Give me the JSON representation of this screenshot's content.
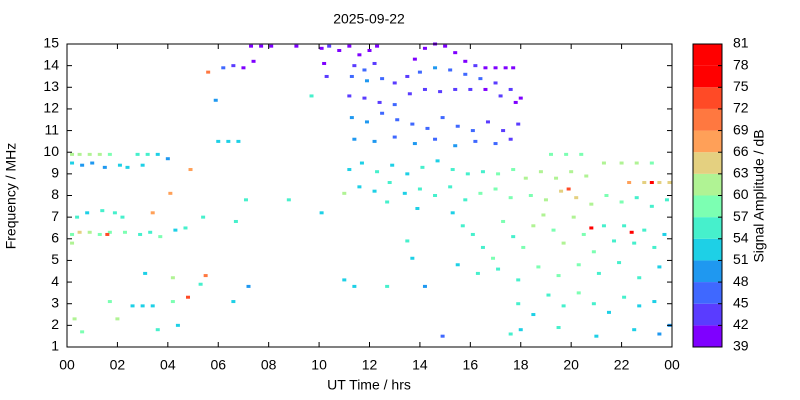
{
  "chart_data": {
    "type": "scatter",
    "title": "2025-09-22",
    "x_label": "UT Time / hrs",
    "y_label": "Frequency / MHz",
    "colorbar_label": "Signal Amplitude / dB",
    "xlim": [
      0,
      24
    ],
    "xticks": [
      {
        "value": 0,
        "label": "00"
      },
      {
        "value": 2,
        "label": "02"
      },
      {
        "value": 4,
        "label": "04"
      },
      {
        "value": 6,
        "label": "06"
      },
      {
        "value": 8,
        "label": "08"
      },
      10,
      12,
      14,
      16,
      18,
      20,
      22,
      {
        "value": 24,
        "label": "00"
      }
    ],
    "ylim": [
      1,
      15
    ],
    "yticks": [
      1,
      2,
      3,
      4,
      5,
      6,
      7,
      8,
      9,
      10,
      11,
      12,
      13,
      14,
      15
    ],
    "clim": [
      39,
      81
    ],
    "cticks": [
      39,
      42,
      45,
      48,
      51,
      54,
      57,
      60,
      63,
      66,
      69,
      72,
      75,
      78,
      81
    ],
    "colors": [
      "#7f00ff",
      "#5a3cff",
      "#3f68ff",
      "#1f98f0",
      "#1ed0e6",
      "#46f0cc",
      "#7cffb2",
      "#b0f394",
      "#e4d080",
      "#ffa058",
      "#ff7840",
      "#ff4a26",
      "#ff0000",
      "#ff0000"
    ],
    "points": [
      [
        0.2,
        9.9,
        60
      ],
      [
        0.5,
        9.9,
        62
      ],
      [
        0.9,
        9.9,
        61
      ],
      [
        1.3,
        9.9,
        60
      ],
      [
        1.7,
        9.9,
        58
      ],
      [
        0.2,
        9.5,
        52
      ],
      [
        0.6,
        9.4,
        50
      ],
      [
        1.0,
        9.5,
        48
      ],
      [
        1.5,
        9.3,
        49
      ],
      [
        2.1,
        9.4,
        51
      ],
      [
        2.8,
        9.9,
        55
      ],
      [
        3.2,
        9.9,
        54
      ],
      [
        3.6,
        9.9,
        52
      ],
      [
        4.0,
        9.7,
        50
      ],
      [
        2.4,
        9.3,
        52
      ],
      [
        3.0,
        9.4,
        53
      ],
      [
        0.4,
        7.0,
        55
      ],
      [
        0.8,
        7.2,
        53
      ],
      [
        1.4,
        7.3,
        54
      ],
      [
        1.9,
        7.2,
        55
      ],
      [
        2.2,
        7.0,
        54
      ],
      [
        3.4,
        7.2,
        66
      ],
      [
        0.2,
        6.2,
        58
      ],
      [
        0.5,
        6.3,
        63
      ],
      [
        0.9,
        6.3,
        60
      ],
      [
        1.3,
        6.2,
        59
      ],
      [
        1.7,
        6.3,
        58
      ],
      [
        2.3,
        6.3,
        57
      ],
      [
        2.9,
        6.2,
        55
      ],
      [
        3.3,
        6.3,
        56
      ],
      [
        3.7,
        6.1,
        57
      ],
      [
        4.3,
        6.4,
        52
      ],
      [
        4.7,
        6.5,
        54
      ],
      [
        0.2,
        5.8,
        60
      ],
      [
        1.6,
        6.2,
        72
      ],
      [
        4.1,
        8.1,
        68
      ],
      [
        4.9,
        9.2,
        66
      ],
      [
        5.5,
        4.3,
        69
      ],
      [
        4.8,
        3.3,
        72
      ],
      [
        0.3,
        2.3,
        60
      ],
      [
        0.6,
        1.7,
        58
      ],
      [
        1.7,
        3.1,
        57
      ],
      [
        2.0,
        2.3,
        60
      ],
      [
        2.6,
        2.9,
        52
      ],
      [
        3.0,
        2.9,
        53
      ],
      [
        3.4,
        2.9,
        51
      ],
      [
        3.6,
        1.8,
        55
      ],
      [
        4.2,
        3.1,
        58
      ],
      [
        4.4,
        2.0,
        52
      ],
      [
        3.1,
        4.4,
        52
      ],
      [
        4.2,
        4.2,
        60
      ],
      [
        5.3,
        3.9,
        55
      ],
      [
        6.6,
        3.1,
        53
      ],
      [
        7.2,
        3.8,
        50
      ],
      [
        5.4,
        7.0,
        56
      ],
      [
        6.7,
        6.8,
        55
      ],
      [
        7.1,
        7.8,
        56
      ],
      [
        8.8,
        7.8,
        55
      ],
      [
        10.1,
        7.2,
        51
      ],
      [
        11.0,
        4.1,
        52
      ],
      [
        11.4,
        3.8,
        53
      ],
      [
        12.7,
        3.8,
        55
      ],
      [
        5.6,
        13.7,
        69
      ],
      [
        6.2,
        13.9,
        45
      ],
      [
        6.6,
        14.0,
        42
      ],
      [
        7.0,
        13.9,
        40
      ],
      [
        7.4,
        14.2,
        41
      ],
      [
        7.3,
        14.9,
        40
      ],
      [
        7.7,
        14.9,
        41
      ],
      [
        8.1,
        14.9,
        40
      ],
      [
        5.9,
        12.4,
        50
      ],
      [
        6.0,
        10.5,
        52
      ],
      [
        6.4,
        10.5,
        53
      ],
      [
        6.8,
        10.5,
        51
      ],
      [
        9.1,
        14.9,
        41
      ],
      [
        9.7,
        12.6,
        56
      ],
      [
        10.1,
        14.8,
        41
      ],
      [
        10.4,
        14.9,
        42
      ],
      [
        10.8,
        14.7,
        40
      ],
      [
        10.3,
        13.5,
        44
      ],
      [
        10.2,
        14.1,
        40
      ],
      [
        11.2,
        14.9,
        40
      ],
      [
        11.6,
        14.5,
        41
      ],
      [
        12.0,
        14.7,
        40
      ],
      [
        12.3,
        14.9,
        41
      ],
      [
        11.4,
        14.0,
        43
      ],
      [
        11.8,
        13.8,
        45
      ],
      [
        12.2,
        14.1,
        44
      ],
      [
        11.3,
        13.5,
        46
      ],
      [
        11.9,
        13.3,
        48
      ],
      [
        12.5,
        13.4,
        45
      ],
      [
        13.0,
        13.2,
        44
      ],
      [
        13.5,
        13.5,
        43
      ],
      [
        13.8,
        14.3,
        41
      ],
      [
        14.2,
        14.8,
        40
      ],
      [
        14.6,
        15.0,
        40
      ],
      [
        15.0,
        14.9,
        41
      ],
      [
        15.4,
        14.6,
        40
      ],
      [
        15.8,
        14.2,
        41
      ],
      [
        16.2,
        14.0,
        42
      ],
      [
        16.6,
        13.9,
        41
      ],
      [
        17.0,
        13.9,
        40
      ],
      [
        17.4,
        13.9,
        41
      ],
      [
        17.7,
        13.9,
        40
      ],
      [
        14.0,
        13.7,
        46
      ],
      [
        14.6,
        13.9,
        48
      ],
      [
        15.2,
        13.8,
        46
      ],
      [
        15.8,
        13.6,
        47
      ],
      [
        16.4,
        13.4,
        45
      ],
      [
        17.0,
        13.2,
        44
      ],
      [
        17.6,
        12.9,
        42
      ],
      [
        18.0,
        12.5,
        41
      ],
      [
        11.2,
        12.6,
        42
      ],
      [
        11.8,
        12.5,
        43
      ],
      [
        12.4,
        12.3,
        44
      ],
      [
        13.0,
        12.2,
        45
      ],
      [
        13.6,
        12.7,
        44
      ],
      [
        14.2,
        12.9,
        43
      ],
      [
        14.8,
        12.8,
        42
      ],
      [
        15.4,
        12.9,
        43
      ],
      [
        16.0,
        12.9,
        42
      ],
      [
        16.6,
        12.9,
        41
      ],
      [
        17.2,
        12.6,
        42
      ],
      [
        17.8,
        12.3,
        41
      ],
      [
        11.3,
        11.6,
        48
      ],
      [
        11.9,
        11.4,
        49
      ],
      [
        12.5,
        11.8,
        47
      ],
      [
        13.1,
        11.5,
        46
      ],
      [
        13.7,
        11.3,
        45
      ],
      [
        14.3,
        11.1,
        46
      ],
      [
        14.9,
        11.6,
        47
      ],
      [
        15.5,
        11.2,
        46
      ],
      [
        16.1,
        11.0,
        45
      ],
      [
        16.7,
        11.4,
        44
      ],
      [
        17.3,
        11.0,
        43
      ],
      [
        17.9,
        11.3,
        42
      ],
      [
        11.4,
        10.6,
        48
      ],
      [
        12.2,
        10.5,
        49
      ],
      [
        13.0,
        10.7,
        47
      ],
      [
        13.8,
        10.4,
        48
      ],
      [
        14.6,
        10.6,
        47
      ],
      [
        15.4,
        10.3,
        48
      ],
      [
        16.2,
        10.5,
        46
      ],
      [
        17.0,
        10.4,
        45
      ],
      [
        17.6,
        10.6,
        44
      ],
      [
        11.2,
        9.2,
        53
      ],
      [
        11.7,
        9.5,
        52
      ],
      [
        12.3,
        9.1,
        54
      ],
      [
        12.9,
        9.4,
        53
      ],
      [
        13.5,
        9.0,
        52
      ],
      [
        14.1,
        9.3,
        54
      ],
      [
        14.7,
        9.6,
        53
      ],
      [
        15.3,
        9.2,
        55
      ],
      [
        15.9,
        9.0,
        56
      ],
      [
        16.5,
        9.1,
        55
      ],
      [
        17.1,
        9.0,
        57
      ],
      [
        17.7,
        9.2,
        58
      ],
      [
        11.6,
        8.4,
        52
      ],
      [
        12.2,
        8.2,
        53
      ],
      [
        12.8,
        8.6,
        54
      ],
      [
        13.4,
        8.1,
        53
      ],
      [
        14.0,
        8.3,
        55
      ],
      [
        14.6,
        8.0,
        56
      ],
      [
        15.2,
        8.4,
        54
      ],
      [
        15.8,
        7.8,
        55
      ],
      [
        16.4,
        8.1,
        57
      ],
      [
        17.0,
        8.3,
        58
      ],
      [
        17.6,
        7.9,
        59
      ],
      [
        11.0,
        8.1,
        60
      ],
      [
        12.7,
        7.7,
        55
      ],
      [
        13.9,
        7.4,
        53
      ],
      [
        14.2,
        3.8,
        50
      ],
      [
        13.7,
        5.1,
        53
      ],
      [
        13.5,
        5.9,
        54
      ],
      [
        15.3,
        7.2,
        53
      ],
      [
        15.7,
        6.6,
        55
      ],
      [
        16.1,
        6.2,
        54
      ],
      [
        16.5,
        5.6,
        55
      ],
      [
        16.9,
        5.1,
        57
      ],
      [
        17.3,
        6.8,
        58
      ],
      [
        17.7,
        6.1,
        56
      ],
      [
        18.1,
        5.6,
        58
      ],
      [
        18.5,
        6.6,
        60
      ],
      [
        18.9,
        7.1,
        61
      ],
      [
        19.3,
        6.4,
        59
      ],
      [
        19.7,
        5.8,
        60
      ],
      [
        20.1,
        7.0,
        61
      ],
      [
        20.5,
        6.2,
        58
      ],
      [
        20.9,
        5.4,
        57
      ],
      [
        21.3,
        6.6,
        56
      ],
      [
        21.7,
        5.9,
        55
      ],
      [
        22.1,
        6.6,
        54
      ],
      [
        22.5,
        5.8,
        56
      ],
      [
        22.9,
        6.4,
        55
      ],
      [
        23.3,
        5.6,
        54
      ],
      [
        23.7,
        6.2,
        53
      ],
      [
        15.5,
        4.8,
        52
      ],
      [
        16.3,
        4.4,
        54
      ],
      [
        17.1,
        4.6,
        55
      ],
      [
        17.9,
        4.1,
        56
      ],
      [
        18.7,
        4.7,
        58
      ],
      [
        19.5,
        4.3,
        57
      ],
      [
        20.3,
        4.8,
        59
      ],
      [
        21.1,
        4.4,
        56
      ],
      [
        21.9,
        4.9,
        55
      ],
      [
        22.7,
        4.2,
        54
      ],
      [
        23.5,
        4.7,
        53
      ],
      [
        18.2,
        8.8,
        60
      ],
      [
        18.8,
        9.1,
        61
      ],
      [
        19.4,
        8.8,
        62
      ],
      [
        20.0,
        9.1,
        60
      ],
      [
        20.6,
        8.9,
        61
      ],
      [
        19.2,
        9.9,
        58
      ],
      [
        19.8,
        9.9,
        57
      ],
      [
        20.4,
        9.9,
        58
      ],
      [
        21.3,
        9.5,
        60
      ],
      [
        22.0,
        9.5,
        62
      ],
      [
        22.6,
        9.5,
        60
      ],
      [
        23.2,
        9.5,
        58
      ],
      [
        22.3,
        8.6,
        66
      ],
      [
        22.9,
        8.6,
        65
      ],
      [
        23.5,
        8.6,
        64
      ],
      [
        23.9,
        8.6,
        65
      ],
      [
        23.2,
        8.6,
        75
      ],
      [
        18.4,
        8.0,
        58
      ],
      [
        19.0,
        7.8,
        60
      ],
      [
        19.6,
        8.2,
        63
      ],
      [
        20.2,
        7.9,
        65
      ],
      [
        19.9,
        8.3,
        72
      ],
      [
        20.8,
        7.6,
        60
      ],
      [
        21.4,
        8.0,
        59
      ],
      [
        22.0,
        7.7,
        57
      ],
      [
        22.6,
        7.9,
        56
      ],
      [
        23.2,
        7.5,
        55
      ],
      [
        23.8,
        7.8,
        54
      ],
      [
        22.4,
        6.3,
        78
      ],
      [
        20.8,
        6.5,
        75
      ],
      [
        17.9,
        3.0,
        54
      ],
      [
        18.5,
        2.5,
        52
      ],
      [
        19.1,
        3.4,
        55
      ],
      [
        19.7,
        2.9,
        56
      ],
      [
        20.3,
        3.5,
        57
      ],
      [
        20.9,
        3.0,
        54
      ],
      [
        21.5,
        2.6,
        53
      ],
      [
        22.1,
        3.3,
        55
      ],
      [
        22.7,
        2.9,
        52
      ],
      [
        23.3,
        3.1,
        51
      ],
      [
        23.9,
        2.0,
        50
      ],
      [
        18.0,
        1.8,
        53
      ],
      [
        19.5,
        1.9,
        55
      ],
      [
        21.0,
        1.5,
        52
      ],
      [
        22.5,
        1.8,
        51
      ],
      [
        23.5,
        1.6,
        50
      ],
      [
        14.9,
        1.5,
        45
      ],
      [
        17.6,
        1.6,
        56
      ]
    ]
  }
}
